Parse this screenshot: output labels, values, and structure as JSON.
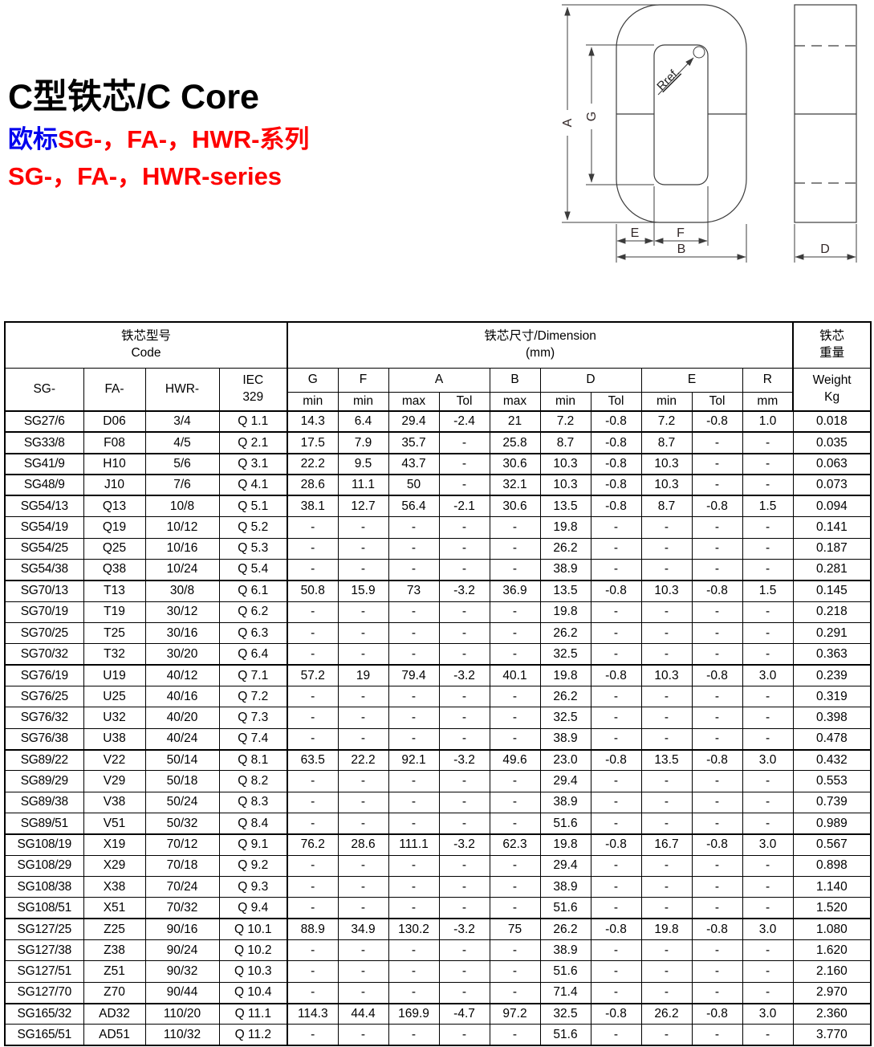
{
  "page": {
    "title": "C型铁芯/C Core",
    "subtitle_cn_prefix": "欧标",
    "subtitle_cn_rest": "SG-，FA-，HWR-系列",
    "subtitle_en": "SG-，FA-，HWR-series"
  },
  "drawing": {
    "labels": {
      "a": "A",
      "g": "G",
      "e": "E",
      "f": "F",
      "b": "B",
      "d": "D",
      "rref": "Rref."
    }
  },
  "table": {
    "header": {
      "code_group_cn": "铁芯型号",
      "code_group_en": "Code",
      "dim_group_cn": "铁芯尺寸/Dimension",
      "dim_group_unit": "(mm)",
      "weight_group_cn1": "铁芯",
      "weight_group_cn2": "重量",
      "col_sg": "SG-",
      "col_fa": "FA-",
      "col_hwr": "HWR-",
      "col_iec1": "IEC",
      "col_iec2": "329",
      "col_g": "G",
      "col_f": "F",
      "col_a": "A",
      "col_b": "B",
      "col_d": "D",
      "col_e": "E",
      "col_r": "R",
      "col_weight": "Weight",
      "min": "min",
      "max": "max",
      "tol": "Tol",
      "mm": "mm",
      "kg": "Kg"
    },
    "group_sizes": [
      1,
      1,
      1,
      1,
      4,
      4,
      4,
      4,
      4,
      4,
      2
    ],
    "rows": [
      [
        "SG27/6",
        "D06",
        "3/4",
        "Q 1.1",
        "14.3",
        "6.4",
        "29.4",
        "-2.4",
        "21",
        "7.2",
        "-0.8",
        "7.2",
        "-0.8",
        "1.0",
        "0.018"
      ],
      [
        "SG33/8",
        "F08",
        "4/5",
        "Q 2.1",
        "17.5",
        "7.9",
        "35.7",
        "-",
        "25.8",
        "8.7",
        "-0.8",
        "8.7",
        "-",
        "-",
        "0.035"
      ],
      [
        "SG41/9",
        "H10",
        "5/6",
        "Q 3.1",
        "22.2",
        "9.5",
        "43.7",
        "-",
        "30.6",
        "10.3",
        "-0.8",
        "10.3",
        "-",
        "-",
        "0.063"
      ],
      [
        "SG48/9",
        "J10",
        "7/6",
        "Q 4.1",
        "28.6",
        "11.1",
        "50",
        "-",
        "32.1",
        "10.3",
        "-0.8",
        "10.3",
        "-",
        "-",
        "0.073"
      ],
      [
        "SG54/13",
        "Q13",
        "10/8",
        "Q 5.1",
        "38.1",
        "12.7",
        "56.4",
        "-2.1",
        "30.6",
        "13.5",
        "-0.8",
        "8.7",
        "-0.8",
        "1.5",
        "0.094"
      ],
      [
        "SG54/19",
        "Q19",
        "10/12",
        "Q 5.2",
        "-",
        "-",
        "-",
        "-",
        "-",
        "19.8",
        "-",
        "-",
        "-",
        "-",
        "0.141"
      ],
      [
        "SG54/25",
        "Q25",
        "10/16",
        "Q 5.3",
        "-",
        "-",
        "-",
        "-",
        "-",
        "26.2",
        "-",
        "-",
        "-",
        "-",
        "0.187"
      ],
      [
        "SG54/38",
        "Q38",
        "10/24",
        "Q 5.4",
        "-",
        "-",
        "-",
        "-",
        "-",
        "38.9",
        "-",
        "-",
        "-",
        "-",
        "0.281"
      ],
      [
        "SG70/13",
        "T13",
        "30/8",
        "Q 6.1",
        "50.8",
        "15.9",
        "73",
        "-3.2",
        "36.9",
        "13.5",
        "-0.8",
        "10.3",
        "-0.8",
        "1.5",
        "0.145"
      ],
      [
        "SG70/19",
        "T19",
        "30/12",
        "Q 6.2",
        "-",
        "-",
        "-",
        "-",
        "-",
        "19.8",
        "-",
        "-",
        "-",
        "-",
        "0.218"
      ],
      [
        "SG70/25",
        "T25",
        "30/16",
        "Q 6.3",
        "-",
        "-",
        "-",
        "-",
        "-",
        "26.2",
        "-",
        "-",
        "-",
        "-",
        "0.291"
      ],
      [
        "SG70/32",
        "T32",
        "30/20",
        "Q 6.4",
        "-",
        "-",
        "-",
        "-",
        "-",
        "32.5",
        "-",
        "-",
        "-",
        "-",
        "0.363"
      ],
      [
        "SG76/19",
        "U19",
        "40/12",
        "Q 7.1",
        "57.2",
        "19",
        "79.4",
        "-3.2",
        "40.1",
        "19.8",
        "-0.8",
        "10.3",
        "-0.8",
        "3.0",
        "0.239"
      ],
      [
        "SG76/25",
        "U25",
        "40/16",
        "Q 7.2",
        "-",
        "-",
        "-",
        "-",
        "-",
        "26.2",
        "-",
        "-",
        "-",
        "-",
        "0.319"
      ],
      [
        "SG76/32",
        "U32",
        "40/20",
        "Q 7.3",
        "-",
        "-",
        "-",
        "-",
        "-",
        "32.5",
        "-",
        "-",
        "-",
        "-",
        "0.398"
      ],
      [
        "SG76/38",
        "U38",
        "40/24",
        "Q 7.4",
        "-",
        "-",
        "-",
        "-",
        "-",
        "38.9",
        "-",
        "-",
        "-",
        "-",
        "0.478"
      ],
      [
        "SG89/22",
        "V22",
        "50/14",
        "Q 8.1",
        "63.5",
        "22.2",
        "92.1",
        "-3.2",
        "49.6",
        "23.0",
        "-0.8",
        "13.5",
        "-0.8",
        "3.0",
        "0.432"
      ],
      [
        "SG89/29",
        "V29",
        "50/18",
        "Q 8.2",
        "-",
        "-",
        "-",
        "-",
        "-",
        "29.4",
        "-",
        "-",
        "-",
        "-",
        "0.553"
      ],
      [
        "SG89/38",
        "V38",
        "50/24",
        "Q 8.3",
        "-",
        "-",
        "-",
        "-",
        "-",
        "38.9",
        "-",
        "-",
        "-",
        "-",
        "0.739"
      ],
      [
        "SG89/51",
        "V51",
        "50/32",
        "Q 8.4",
        "-",
        "-",
        "-",
        "-",
        "-",
        "51.6",
        "-",
        "-",
        "-",
        "-",
        "0.989"
      ],
      [
        "SG108/19",
        "X19",
        "70/12",
        "Q 9.1",
        "76.2",
        "28.6",
        "111.1",
        "-3.2",
        "62.3",
        "19.8",
        "-0.8",
        "16.7",
        "-0.8",
        "3.0",
        "0.567"
      ],
      [
        "SG108/29",
        "X29",
        "70/18",
        "Q 9.2",
        "-",
        "-",
        "-",
        "-",
        "-",
        "29.4",
        "-",
        "-",
        "-",
        "-",
        "0.898"
      ],
      [
        "SG108/38",
        "X38",
        "70/24",
        "Q 9.3",
        "-",
        "-",
        "-",
        "-",
        "-",
        "38.9",
        "-",
        "-",
        "-",
        "-",
        "1.140"
      ],
      [
        "SG108/51",
        "X51",
        "70/32",
        "Q 9.4",
        "-",
        "-",
        "-",
        "-",
        "-",
        "51.6",
        "-",
        "-",
        "-",
        "-",
        "1.520"
      ],
      [
        "SG127/25",
        "Z25",
        "90/16",
        "Q 10.1",
        "88.9",
        "34.9",
        "130.2",
        "-3.2",
        "75",
        "26.2",
        "-0.8",
        "19.8",
        "-0.8",
        "3.0",
        "1.080"
      ],
      [
        "SG127/38",
        "Z38",
        "90/24",
        "Q 10.2",
        "-",
        "-",
        "-",
        "-",
        "-",
        "38.9",
        "-",
        "-",
        "-",
        "-",
        "1.620"
      ],
      [
        "SG127/51",
        "Z51",
        "90/32",
        "Q 10.3",
        "-",
        "-",
        "-",
        "-",
        "-",
        "51.6",
        "-",
        "-",
        "-",
        "-",
        "2.160"
      ],
      [
        "SG127/70",
        "Z70",
        "90/44",
        "Q 10.4",
        "-",
        "-",
        "-",
        "-",
        "-",
        "71.4",
        "-",
        "-",
        "-",
        "-",
        "2.970"
      ],
      [
        "SG165/32",
        "AD32",
        "110/20",
        "Q 11.1",
        "114.3",
        "44.4",
        "169.9",
        "-4.7",
        "97.2",
        "32.5",
        "-0.8",
        "26.2",
        "-0.8",
        "3.0",
        "2.360"
      ],
      [
        "SG165/51",
        "AD51",
        "110/32",
        "Q 11.2",
        "-",
        "-",
        "-",
        "-",
        "-",
        "51.6",
        "-",
        "-",
        "-",
        "-",
        "3.770"
      ]
    ]
  }
}
